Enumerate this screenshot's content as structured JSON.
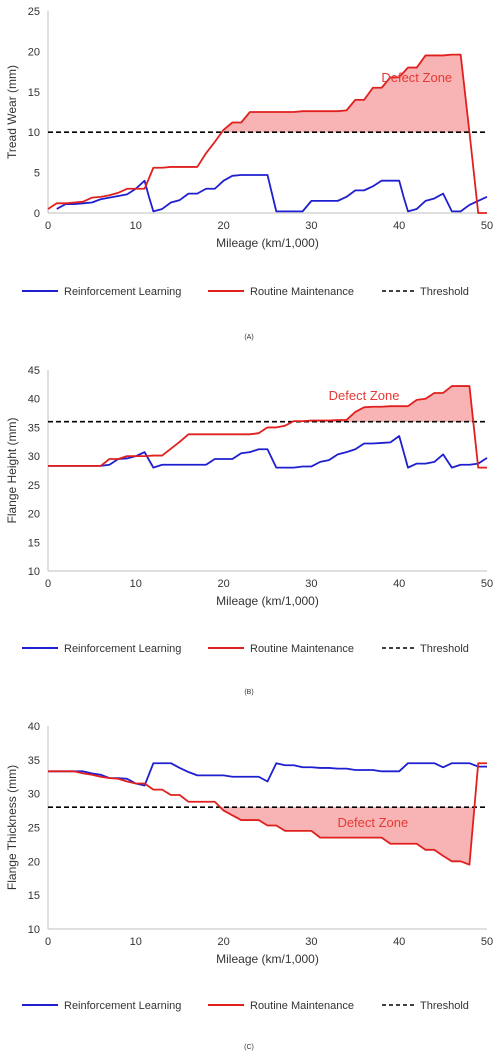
{
  "legend": {
    "rl": "Reinforcement Learning",
    "rm": "Routine Maintenance",
    "threshold": "Threshold"
  },
  "colors": {
    "rl": "#1f1fd0",
    "rm": "#e0201f",
    "threshold": "#000000",
    "defect_fill": "#f8b4b4"
  },
  "chart_data": [
    {
      "type": "line",
      "panel_label": "(A)",
      "xlabel": "Mileage (km/1,000)",
      "ylabel": "Tread Wear (mm)",
      "xlim": [
        0,
        50
      ],
      "ylim": [
        0,
        25
      ],
      "xticks": [
        0,
        10,
        20,
        30,
        40,
        50
      ],
      "yticks": [
        0,
        5,
        10,
        15,
        20,
        25
      ],
      "threshold": 10,
      "defect_label": "Defect Zone",
      "defect_side": "above",
      "series": [
        {
          "name": "Reinforcement Learning",
          "x": [
            1,
            2,
            3,
            4,
            5,
            6,
            7,
            8,
            9,
            10,
            11,
            11.5,
            12,
            13,
            14,
            15,
            16,
            17,
            18,
            19,
            20,
            21,
            22,
            23,
            24,
            25,
            26,
            27,
            28,
            29,
            30,
            31,
            32,
            33,
            34,
            35,
            36,
            37,
            38,
            39,
            40,
            40.5,
            41,
            42,
            43,
            44,
            45,
            46,
            47,
            48,
            50
          ],
          "y": [
            0.5,
            1.1,
            1.1,
            1.2,
            1.3,
            1.7,
            1.9,
            2.1,
            2.3,
            3.0,
            4.0,
            2.0,
            0.2,
            0.5,
            1.3,
            1.6,
            2.4,
            2.4,
            3.0,
            3.0,
            4.0,
            4.6,
            4.7,
            4.7,
            4.7,
            4.7,
            0.2,
            0.2,
            0.2,
            0.2,
            1.5,
            1.5,
            1.5,
            1.5,
            2.0,
            2.8,
            2.8,
            3.3,
            4.0,
            4.0,
            4.0,
            2.0,
            0.2,
            0.5,
            1.5,
            1.8,
            2.4,
            0.2,
            0.2,
            1.0,
            2.0
          ]
        },
        {
          "name": "Routine Maintenance",
          "x": [
            0,
            1,
            2,
            3,
            4,
            5,
            6,
            7,
            8,
            9,
            10,
            11,
            12,
            13,
            14,
            15,
            16,
            17,
            18,
            19,
            20,
            21,
            22,
            23,
            24,
            25,
            26,
            27,
            28,
            29,
            30,
            31,
            32,
            33,
            34,
            35,
            36,
            37,
            38,
            39,
            40,
            41,
            42,
            43,
            44,
            45,
            46,
            47,
            48,
            49,
            50
          ],
          "y": [
            0.5,
            1.2,
            1.2,
            1.3,
            1.4,
            1.9,
            2.0,
            2.2,
            2.5,
            3.0,
            3.0,
            3.0,
            5.6,
            5.6,
            5.7,
            5.7,
            5.7,
            5.7,
            7.4,
            8.8,
            10.3,
            11.2,
            11.2,
            12.5,
            12.5,
            12.5,
            12.5,
            12.5,
            12.5,
            12.6,
            12.6,
            12.6,
            12.6,
            12.6,
            12.7,
            14.0,
            14.0,
            15.5,
            15.5,
            16.8,
            16.8,
            18.0,
            18.0,
            19.5,
            19.5,
            19.5,
            19.6,
            19.6,
            10.0,
            0.0,
            0.0
          ]
        }
      ]
    },
    {
      "type": "line",
      "panel_label": "(B)",
      "xlabel": "Mileage (km/1,000)",
      "ylabel": "Flange Height (mm)",
      "xlim": [
        0,
        50
      ],
      "ylim": [
        10,
        45
      ],
      "xticks": [
        0,
        10,
        20,
        30,
        40,
        50
      ],
      "yticks": [
        10,
        15,
        20,
        25,
        30,
        35,
        40,
        45
      ],
      "threshold": 36,
      "defect_label": "Defect Zone",
      "defect_side": "above",
      "series": [
        {
          "name": "Reinforcement Learning",
          "x": [
            0,
            1,
            2,
            3,
            4,
            5,
            6,
            7,
            8,
            9,
            10,
            11,
            12,
            13,
            14,
            15,
            16,
            17,
            18,
            19,
            20,
            21,
            22,
            23,
            24,
            25,
            26,
            27,
            28,
            29,
            30,
            31,
            32,
            33,
            34,
            35,
            36,
            37,
            38,
            39,
            40,
            41,
            42,
            43,
            44,
            45,
            46,
            47,
            48,
            49,
            50
          ],
          "y": [
            28.3,
            28.3,
            28.3,
            28.3,
            28.3,
            28.3,
            28.3,
            28.5,
            29.5,
            29.6,
            30.0,
            30.7,
            28.0,
            28.5,
            28.5,
            28.5,
            28.5,
            28.5,
            28.5,
            29.5,
            29.5,
            29.5,
            30.5,
            30.7,
            31.2,
            31.2,
            28.0,
            28.0,
            28.0,
            28.2,
            28.2,
            29.0,
            29.3,
            30.3,
            30.7,
            31.2,
            32.2,
            32.2,
            32.3,
            32.4,
            33.5,
            28.0,
            28.7,
            28.7,
            29.0,
            30.3,
            28.0,
            28.5,
            28.5,
            28.7,
            29.7
          ]
        },
        {
          "name": "Routine Maintenance",
          "x": [
            0,
            1,
            2,
            3,
            4,
            5,
            6,
            7,
            8,
            9,
            10,
            11,
            12,
            13,
            14,
            15,
            16,
            17,
            18,
            19,
            20,
            21,
            22,
            23,
            24,
            25,
            26,
            27,
            28,
            29,
            30,
            31,
            32,
            33,
            34,
            35,
            36,
            37,
            38,
            39,
            40,
            41,
            42,
            43,
            44,
            45,
            46,
            47,
            48,
            49,
            50
          ],
          "y": [
            28.3,
            28.3,
            28.3,
            28.3,
            28.3,
            28.3,
            28.3,
            29.5,
            29.5,
            30.0,
            30.0,
            30.0,
            30.1,
            30.1,
            31.3,
            32.5,
            33.8,
            33.8,
            33.8,
            33.8,
            33.8,
            33.8,
            33.8,
            33.8,
            34.0,
            35.0,
            35.0,
            35.3,
            36.1,
            36.1,
            36.2,
            36.2,
            36.2,
            36.3,
            36.3,
            37.7,
            38.5,
            38.6,
            38.6,
            38.7,
            38.7,
            38.7,
            39.8,
            40.0,
            41.0,
            41.0,
            42.2,
            42.2,
            42.2,
            28.0,
            28.0
          ]
        }
      ]
    },
    {
      "type": "line",
      "panel_label": "(C)",
      "xlabel": "Mileage (km/1,000)",
      "ylabel": "Flange Thickness (mm)",
      "xlim": [
        0,
        50
      ],
      "ylim": [
        10,
        40
      ],
      "xticks": [
        0,
        10,
        20,
        30,
        40,
        50
      ],
      "yticks": [
        10,
        15,
        20,
        25,
        30,
        35,
        40
      ],
      "threshold": 28,
      "defect_label": "Defect Zone",
      "defect_side": "below",
      "series": [
        {
          "name": "Reinforcement Learning",
          "x": [
            0,
            1,
            2,
            3,
            4,
            5,
            6,
            7,
            8,
            9,
            10,
            11,
            12,
            13,
            14,
            15,
            16,
            17,
            18,
            19,
            20,
            21,
            22,
            23,
            24,
            25,
            26,
            27,
            28,
            29,
            30,
            31,
            32,
            33,
            34,
            35,
            36,
            37,
            38,
            39,
            40,
            41,
            42,
            43,
            44,
            45,
            46,
            47,
            48,
            49,
            50
          ],
          "y": [
            33.3,
            33.3,
            33.3,
            33.3,
            33.3,
            33.0,
            32.8,
            32.3,
            32.3,
            32.2,
            31.5,
            31.2,
            34.5,
            34.5,
            34.5,
            33.8,
            33.2,
            32.7,
            32.7,
            32.7,
            32.7,
            32.5,
            32.5,
            32.5,
            32.5,
            31.8,
            34.5,
            34.2,
            34.2,
            33.9,
            33.9,
            33.8,
            33.8,
            33.7,
            33.7,
            33.5,
            33.5,
            33.5,
            33.3,
            33.3,
            33.3,
            34.5,
            34.5,
            34.5,
            34.5,
            33.9,
            34.5,
            34.5,
            34.5,
            34.0,
            34.0
          ]
        },
        {
          "name": "Routine Maintenance",
          "x": [
            0,
            1,
            2,
            3,
            4,
            5,
            6,
            7,
            8,
            9,
            10,
            11,
            12,
            13,
            14,
            15,
            16,
            17,
            18,
            19,
            20,
            21,
            22,
            23,
            24,
            25,
            26,
            27,
            28,
            29,
            30,
            31,
            32,
            33,
            34,
            35,
            36,
            37,
            38,
            39,
            40,
            41,
            42,
            43,
            44,
            45,
            46,
            47,
            48,
            49,
            50
          ],
          "y": [
            33.3,
            33.3,
            33.3,
            33.3,
            33.0,
            32.8,
            32.5,
            32.3,
            32.2,
            31.8,
            31.5,
            31.5,
            30.6,
            30.6,
            29.8,
            29.8,
            28.8,
            28.8,
            28.8,
            28.8,
            27.5,
            26.8,
            26.1,
            26.1,
            26.1,
            25.3,
            25.3,
            24.5,
            24.5,
            24.5,
            24.5,
            23.5,
            23.5,
            23.5,
            23.5,
            23.5,
            23.5,
            23.5,
            23.5,
            22.6,
            22.6,
            22.6,
            22.6,
            21.7,
            21.7,
            20.8,
            20.0,
            20.0,
            19.5,
            34.5,
            34.5
          ]
        }
      ]
    }
  ]
}
